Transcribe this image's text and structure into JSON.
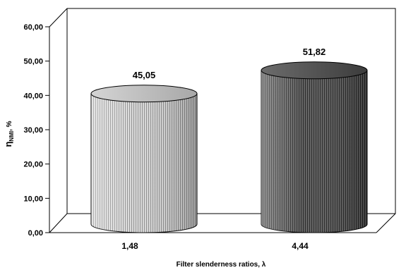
{
  "chart_data": {
    "type": "bar",
    "style": "3d-cylinder",
    "categories": [
      "1,48",
      "4,44"
    ],
    "values": [
      45.05,
      51.82
    ],
    "value_labels": [
      "45,05",
      "51,82"
    ],
    "ylim": [
      0,
      60
    ],
    "yticks": [
      0,
      10,
      20,
      30,
      40,
      50,
      60
    ],
    "ytick_labels": [
      "0,00",
      "10,00",
      "20,00",
      "30,00",
      "40,00",
      "50,00",
      "60,00"
    ],
    "ylabel_main": "η",
    "ylabel_sub": "NMI",
    "ylabel_suffix": ", %",
    "xlabel": "Filter slenderness ratios, λ",
    "grid": false,
    "legend": "none",
    "colors": {
      "bar_light": [
        "#ececec",
        "#9a9a9a"
      ],
      "bar_dark": [
        "#6a6a6a",
        "#2e2e2e"
      ]
    }
  }
}
